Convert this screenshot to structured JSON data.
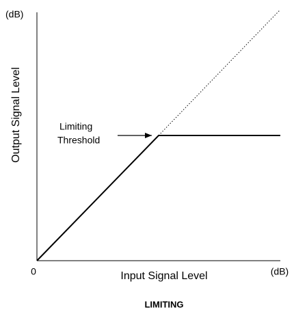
{
  "axes": {
    "y_unit": "(dB)",
    "y_label": "Output Signal Level",
    "origin": "0",
    "x_label": "Input Signal Level",
    "x_unit": "(dB)"
  },
  "annotation": {
    "lines": [
      "Limiting",
      "Threshold"
    ]
  },
  "caption": "LIMITING"
}
